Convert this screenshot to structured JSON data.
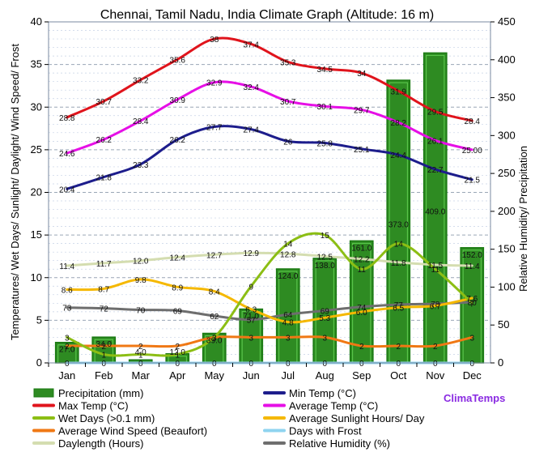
{
  "chart_data": {
    "type": "line",
    "title": "Chennai, Tamil Nadu, India Climate Graph (Altitude: 16 m)",
    "brand": "ClimaTemps",
    "categories": [
      "Jan",
      "Feb",
      "Mar",
      "Apr",
      "May",
      "Jun",
      "Jul",
      "Aug",
      "Sep",
      "Oct",
      "Nov",
      "Dec"
    ],
    "left_axis": {
      "label": "Temperatures/ Wet Days/ Sunlight/ Daylight/ Wind Speed/ Frost",
      "range": [
        0,
        40
      ],
      "ticks": [
        "0",
        "5",
        "10",
        "15",
        "20",
        "25",
        "30",
        "35",
        "40"
      ]
    },
    "right_axis": {
      "label": "Relative Humidity/ Precipitation",
      "range": [
        0,
        450
      ],
      "ticks": [
        "0",
        "50",
        "100",
        "150",
        "200",
        "250",
        "300",
        "350",
        "400",
        "450"
      ]
    },
    "bars": {
      "name": "Precipitation (mm)",
      "axis": "right",
      "color": "#2e8b22",
      "values": [
        27.0,
        34.0,
        4.0,
        12.0,
        39.0,
        71.0,
        124.0,
        138.0,
        161.0,
        373.0,
        409.0,
        152.0
      ],
      "labels": [
        "27.0",
        "34.0",
        "4.0",
        "12.0",
        "39.0",
        "71.0",
        "124.0",
        "138.0",
        "161.0",
        "373.0",
        "409.0",
        "152.0"
      ]
    },
    "series": [
      {
        "name": "Max Temp (°C)",
        "color": "#e0141c",
        "axis": "left",
        "values": [
          28.8,
          30.7,
          33.2,
          35.6,
          38.0,
          37.4,
          35.3,
          34.5,
          34.0,
          31.9,
          29.5,
          28.4
        ],
        "labels": [
          "28.8",
          "30.7",
          "33.2",
          "35.6",
          "38",
          "37.4",
          "35.3",
          "34.5",
          "34",
          "31.9",
          "29.5",
          "28.4"
        ]
      },
      {
        "name": "Min Temp (°C)",
        "color": "#1d1d8c",
        "axis": "left",
        "values": [
          20.4,
          21.8,
          23.3,
          26.2,
          27.7,
          27.4,
          26.0,
          25.8,
          25.1,
          24.4,
          22.7,
          21.5
        ],
        "labels": [
          "20.4",
          "21.8",
          "23.3",
          "26.2",
          "27.7",
          "27.4",
          "26",
          "25.8",
          "25.1",
          "24.4",
          "22.7",
          "21.5"
        ]
      },
      {
        "name": "Average Temp (°C)",
        "color": "#e60fe6",
        "axis": "left",
        "values": [
          24.6,
          26.2,
          28.4,
          30.9,
          32.9,
          32.4,
          30.7,
          30.1,
          29.7,
          28.2,
          26.1,
          25.0
        ],
        "labels": [
          "24.6",
          "26.2",
          "28.4",
          "30.9",
          "32.9",
          "32.4",
          "30.7",
          "30.1",
          "29.7",
          "28.2",
          "26.1",
          "25.00"
        ]
      },
      {
        "name": "Wet Days (>0.1 mm)",
        "color": "#8cbe14",
        "axis": "left",
        "values": [
          3,
          1,
          1,
          1,
          3,
          9,
          14,
          15,
          11,
          14,
          11,
          7
        ],
        "labels": [
          "3",
          "1",
          "1",
          "1",
          "3",
          "9",
          "14",
          "15",
          "11",
          "14",
          "11",
          "7"
        ]
      },
      {
        "name": "Average Sunlight Hours/ Day",
        "color": "#f5b800",
        "axis": "left",
        "values": [
          8.6,
          8.7,
          9.8,
          8.9,
          8.4,
          6.3,
          4.8,
          5.3,
          6.0,
          6.5,
          6.7,
          7.6
        ],
        "labels": [
          "8.6",
          "8.7",
          "9.8",
          "8.9",
          "8.4",
          "6.3",
          "4.8",
          "5.3",
          "6.0",
          "6.5",
          "6.7",
          "7.6"
        ]
      },
      {
        "name": "Average Wind Speed (Beaufort)",
        "color": "#f07814",
        "axis": "left",
        "values": [
          2,
          2,
          2,
          2,
          3,
          3,
          3,
          3,
          2,
          2,
          2,
          3
        ],
        "labels": [
          "2",
          "2",
          "2",
          "2",
          "3",
          "3",
          "3",
          "3",
          "2",
          "2",
          "2",
          "3"
        ]
      },
      {
        "name": "Days with Frost",
        "color": "#8fd4f0",
        "axis": "left",
        "values": [
          0,
          0,
          0,
          0,
          0,
          0,
          0,
          0,
          0,
          0,
          0,
          0
        ],
        "labels": [
          "0",
          "0",
          "0",
          "0",
          "0",
          "0",
          "0",
          "0",
          "0",
          "0",
          "0",
          "0"
        ]
      },
      {
        "name": "Daylength (Hours)",
        "color": "#d4ddb0",
        "axis": "left",
        "values": [
          11.4,
          11.7,
          12.0,
          12.4,
          12.7,
          12.9,
          12.8,
          12.5,
          12.2,
          11.8,
          11.5,
          11.4
        ],
        "labels": [
          "11.4",
          "11.7",
          "12.0",
          "12.4",
          "12.7",
          "12.9",
          "12.8",
          "12.5",
          "12.2",
          "11.8",
          "11.5",
          "11.4"
        ]
      },
      {
        "name": "Relative Humidity (%)",
        "color": "#6e6e6e",
        "axis": "right",
        "values": [
          73,
          72,
          70,
          69,
          62,
          57,
          64,
          69,
          74,
          77,
          78,
          80
        ],
        "labels": [
          "73",
          "72",
          "70",
          "69",
          "62",
          "57",
          "64",
          "69",
          "74",
          "77",
          "78",
          "80"
        ]
      }
    ],
    "legend": [
      {
        "name": "Precipitation (mm)",
        "kind": "bar",
        "color": "#2e8b22"
      },
      {
        "name": "Min Temp (°C)",
        "kind": "line",
        "color": "#1d1d8c"
      },
      {
        "name": "Max Temp (°C)",
        "kind": "line",
        "color": "#e0141c"
      },
      {
        "name": "Average Temp (°C)",
        "kind": "line",
        "color": "#e60fe6"
      },
      {
        "name": "Wet Days (>0.1 mm)",
        "kind": "line",
        "color": "#8cbe14"
      },
      {
        "name": "Average Sunlight Hours/ Day",
        "kind": "line",
        "color": "#f5b800"
      },
      {
        "name": "Average Wind Speed (Beaufort)",
        "kind": "line",
        "color": "#f07814"
      },
      {
        "name": "Days with Frost",
        "kind": "line",
        "color": "#8fd4f0"
      },
      {
        "name": "Daylength (Hours)",
        "kind": "line",
        "color": "#d4ddb0"
      },
      {
        "name": "Relative Humidity (%)",
        "kind": "line",
        "color": "#6e6e6e"
      }
    ]
  }
}
